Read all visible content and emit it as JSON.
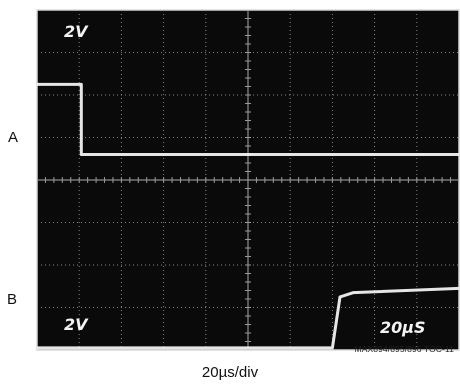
{
  "chart_data": {
    "type": "line",
    "title": "",
    "xlabel": "20µs/div",
    "ylabel": "",
    "grid": true,
    "divisions": {
      "x": 10,
      "y": 8
    },
    "channels": [
      {
        "name": "A",
        "scale_label": "2V",
        "x": [
          0,
          1.05,
          1.05,
          10
        ],
        "y": [
          6.25,
          6.25,
          4.6,
          4.6
        ]
      },
      {
        "name": "B",
        "scale_label": "2V",
        "x": [
          0,
          7.0,
          7.18,
          7.5,
          10
        ],
        "y": [
          0.05,
          0.05,
          1.25,
          1.35,
          1.45
        ]
      }
    ],
    "timebase_label": "20µS"
  },
  "labels": {
    "channel_a": "A",
    "channel_b": "B",
    "x_caption": "20µs/div",
    "figure_id": "MAX894/895/896 TOC-11"
  },
  "colors": {
    "screen": "#0a0a0a",
    "grid": "#9a9a9a",
    "trace": "#f2f2f2",
    "frame": "#d8d8d8"
  }
}
